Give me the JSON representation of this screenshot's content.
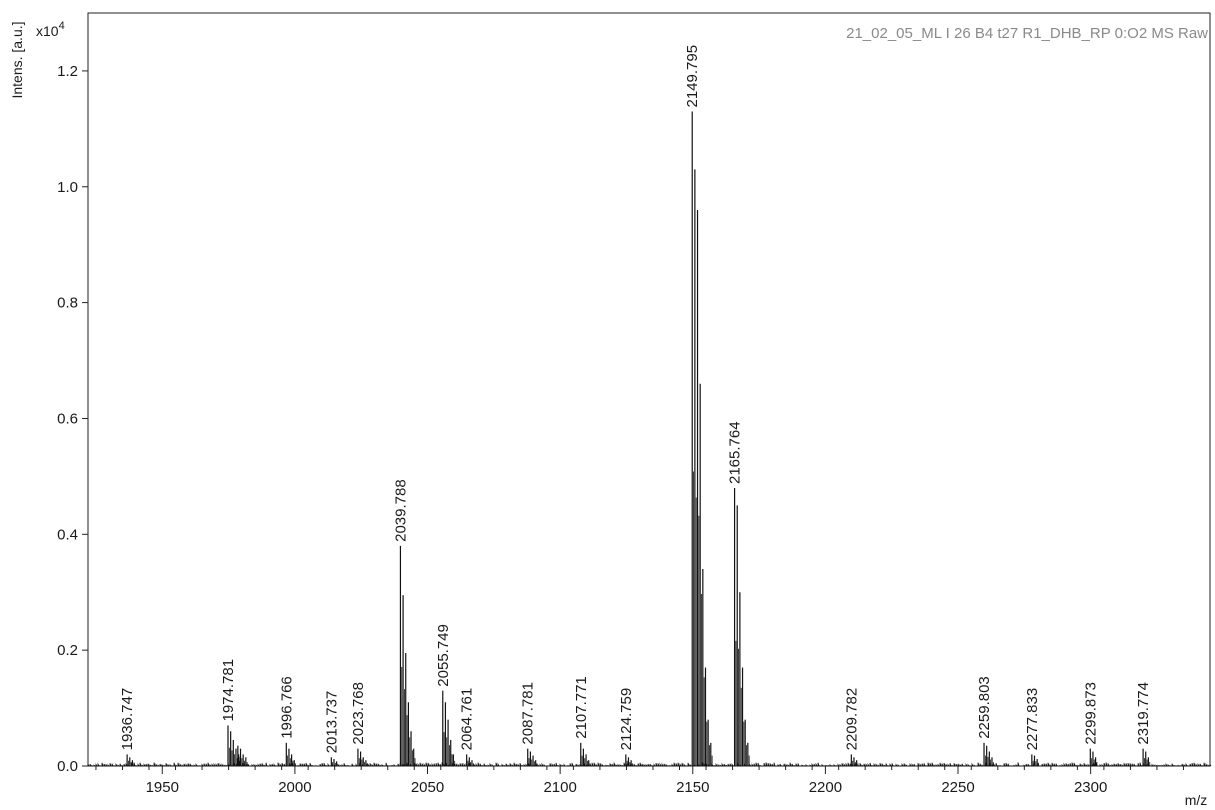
{
  "chart_data": {
    "type": "line",
    "header": "21_02_05_ML I 26 B4 t27 R1_DHB_RP 0:O2 MS Raw",
    "ylabel": "Intens. [a.u.]",
    "yscale_label": "x10",
    "yscale_exp": "4",
    "xlabel": "m/z",
    "xlim": [
      1922,
      2345
    ],
    "ylim": [
      0,
      1.3
    ],
    "xticks": [
      1950,
      2000,
      2050,
      2100,
      2150,
      2200,
      2250,
      2300
    ],
    "xtick_labels": [
      "1950",
      "2000",
      "2050",
      "2100",
      "2150",
      "2200",
      "2250",
      "2300"
    ],
    "yticks": [
      0,
      0.2,
      0.4,
      0.6,
      0.8,
      1.0,
      1.2
    ],
    "ytick_labels": [
      "0.0",
      "0.2",
      "0.4",
      "0.6",
      "0.8",
      "1.0",
      "1.2"
    ],
    "grid": false,
    "peaks": [
      {
        "label": "1936.747",
        "mz": 1936.747,
        "intensity": 0.02
      },
      {
        "label": "1974.781",
        "mz": 1974.781,
        "intensity": 0.07
      },
      {
        "label": "1996.766",
        "mz": 1996.766,
        "intensity": 0.04
      },
      {
        "label": "2013.737",
        "mz": 2013.737,
        "intensity": 0.015
      },
      {
        "label": "2023.768",
        "mz": 2023.768,
        "intensity": 0.03
      },
      {
        "label": "2039.788",
        "mz": 2039.788,
        "intensity": 0.38
      },
      {
        "label": "2055.749",
        "mz": 2055.749,
        "intensity": 0.13
      },
      {
        "label": "2064.761",
        "mz": 2064.761,
        "intensity": 0.02
      },
      {
        "label": "2087.781",
        "mz": 2087.781,
        "intensity": 0.03
      },
      {
        "label": "2107.771",
        "mz": 2107.771,
        "intensity": 0.04
      },
      {
        "label": "2124.759",
        "mz": 2124.759,
        "intensity": 0.02
      },
      {
        "label": "2149.795",
        "mz": 2149.795,
        "intensity": 1.13
      },
      {
        "label": "2165.764",
        "mz": 2165.764,
        "intensity": 0.48
      },
      {
        "label": "2209.782",
        "mz": 2209.782,
        "intensity": 0.02
      },
      {
        "label": "2259.803",
        "mz": 2259.803,
        "intensity": 0.04
      },
      {
        "label": "2277.833",
        "mz": 2277.833,
        "intensity": 0.02
      },
      {
        "label": "2299.873",
        "mz": 2299.873,
        "intensity": 0.03
      },
      {
        "label": "2319.774",
        "mz": 2319.774,
        "intensity": 0.03
      }
    ],
    "envelopes": [
      {
        "mz": 1936.747,
        "heights": [
          0.02,
          0.015,
          0.01
        ]
      },
      {
        "mz": 1974.781,
        "heights": [
          0.07,
          0.06,
          0.045,
          0.03,
          0.02
        ]
      },
      {
        "mz": 1978.5,
        "heights": [
          0.035,
          0.03,
          0.02,
          0.015
        ]
      },
      {
        "mz": 1996.766,
        "heights": [
          0.04,
          0.03,
          0.02,
          0.01
        ]
      },
      {
        "mz": 2013.737,
        "heights": [
          0.015,
          0.012,
          0.008
        ]
      },
      {
        "mz": 2023.768,
        "heights": [
          0.03,
          0.025,
          0.015,
          0.01
        ]
      },
      {
        "mz": 2039.788,
        "heights": [
          0.38,
          0.295,
          0.195,
          0.11,
          0.06,
          0.03
        ]
      },
      {
        "mz": 2055.749,
        "heights": [
          0.13,
          0.11,
          0.08,
          0.045,
          0.02
        ]
      },
      {
        "mz": 2064.761,
        "heights": [
          0.02,
          0.015,
          0.01
        ]
      },
      {
        "mz": 2087.781,
        "heights": [
          0.03,
          0.025,
          0.018,
          0.01
        ]
      },
      {
        "mz": 2107.771,
        "heights": [
          0.04,
          0.03,
          0.02,
          0.01
        ]
      },
      {
        "mz": 2124.759,
        "heights": [
          0.02,
          0.015,
          0.01
        ]
      },
      {
        "mz": 2149.795,
        "heights": [
          1.13,
          1.03,
          0.96,
          0.66,
          0.34,
          0.17,
          0.08,
          0.04
        ]
      },
      {
        "mz": 2165.764,
        "heights": [
          0.48,
          0.45,
          0.3,
          0.17,
          0.08,
          0.04
        ]
      },
      {
        "mz": 2209.782,
        "heights": [
          0.02,
          0.015,
          0.01
        ]
      },
      {
        "mz": 2259.803,
        "heights": [
          0.04,
          0.035,
          0.025,
          0.015
        ]
      },
      {
        "mz": 2277.833,
        "heights": [
          0.02,
          0.018,
          0.012
        ]
      },
      {
        "mz": 2299.873,
        "heights": [
          0.03,
          0.025,
          0.015
        ]
      },
      {
        "mz": 2319.774,
        "heights": [
          0.03,
          0.025,
          0.015
        ]
      }
    ]
  }
}
